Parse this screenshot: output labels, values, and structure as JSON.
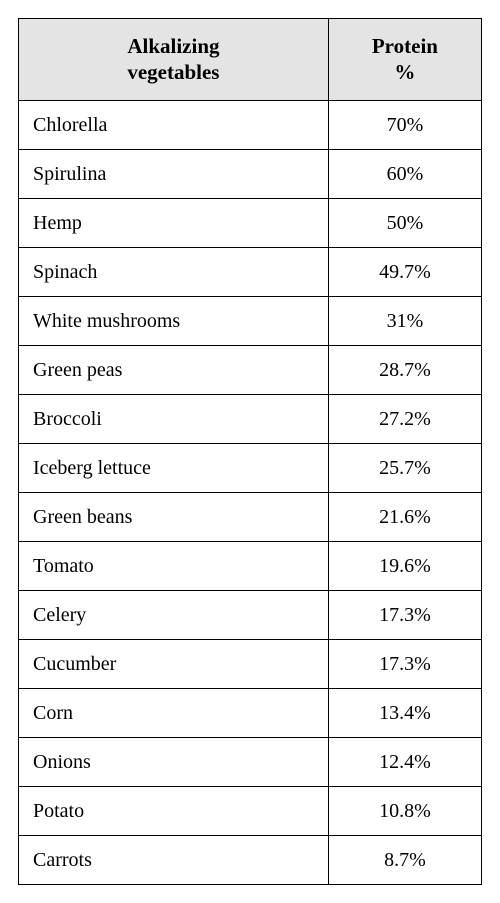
{
  "table": {
    "type": "table",
    "header_bg": "#e4e4e4",
    "border_color": "#000000",
    "background_color": "#ffffff",
    "font_family": "Garamond, Georgia, serif",
    "header_fontsize": 21,
    "cell_fontsize": 20,
    "columns": [
      {
        "label_line1": "Alkalizing",
        "label_line2": "vegetables",
        "align": "left"
      },
      {
        "label_line1": "Protein",
        "label_line2": "%",
        "align": "center"
      }
    ],
    "rows": [
      {
        "name": "Chlorella",
        "value": "70%"
      },
      {
        "name": "Spirulina",
        "value": "60%"
      },
      {
        "name": "Hemp",
        "value": "50%"
      },
      {
        "name": "Spinach",
        "value": "49.7%"
      },
      {
        "name": "White mushrooms",
        "value": "31%"
      },
      {
        "name": "Green peas",
        "value": "28.7%"
      },
      {
        "name": "Broccoli",
        "value": "27.2%"
      },
      {
        "name": "Iceberg lettuce",
        "value": "25.7%"
      },
      {
        "name": "Green beans",
        "value": "21.6%"
      },
      {
        "name": "Tomato",
        "value": "19.6%"
      },
      {
        "name": "Celery",
        "value": "17.3%"
      },
      {
        "name": "Cucumber",
        "value": "17.3%"
      },
      {
        "name": "Corn",
        "value": "13.4%"
      },
      {
        "name": "Onions",
        "value": "12.4%"
      },
      {
        "name": "Potato",
        "value": "10.8%"
      },
      {
        "name": "Carrots",
        "value": "8.7%"
      }
    ]
  }
}
